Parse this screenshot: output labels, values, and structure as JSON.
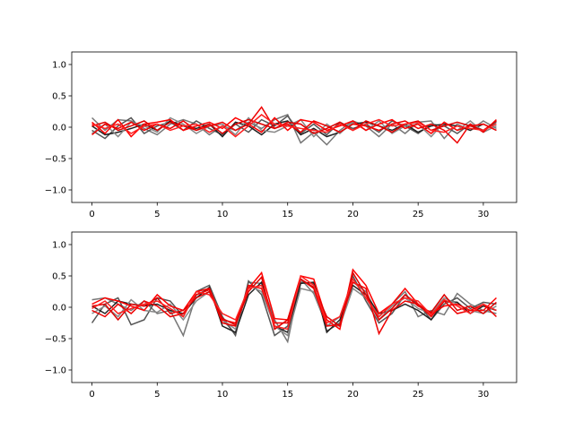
{
  "chart_data": [
    {
      "type": "line",
      "xlim": [
        -1.55,
        32.55
      ],
      "ylim": [
        -1.2,
        1.2
      ],
      "xticks": [
        0,
        5,
        10,
        15,
        20,
        25,
        30
      ],
      "yticks": [
        -1.0,
        -0.5,
        0.0,
        0.5,
        1.0
      ],
      "xtick_labels": [
        "0",
        "5",
        "10",
        "15",
        "20",
        "25",
        "30"
      ],
      "ytick_labels": [
        "−1.0",
        "−0.5",
        "0.0",
        "0.5",
        "1.0"
      ],
      "grid": false,
      "x": [
        0,
        1,
        2,
        3,
        4,
        5,
        6,
        7,
        8,
        9,
        10,
        11,
        12,
        13,
        14,
        15,
        16,
        17,
        18,
        19,
        20,
        21,
        22,
        23,
        24,
        25,
        26,
        27,
        28,
        29,
        30,
        31
      ],
      "series": [
        {
          "color": "#777777",
          "values": [
            0.15,
            -0.05,
            0.12,
            0.1,
            -0.02,
            -0.12,
            0.05,
            0.12,
            0.05,
            -0.12,
            0.02,
            -0.05,
            0.08,
            -0.02,
            0.12,
            0.2,
            -0.25,
            -0.08,
            -0.28,
            -0.05,
            0.1,
            0.02,
            -0.15,
            0.05,
            -0.1,
            0.08,
            0.1,
            -0.18,
            0.05,
            -0.05,
            0.1,
            -0.02
          ]
        },
        {
          "color": "#555555",
          "values": [
            -0.05,
            -0.18,
            0.02,
            0.15,
            -0.1,
            0.02,
            0.08,
            -0.05,
            0.1,
            -0.02,
            -0.12,
            0.05,
            -0.08,
            0.12,
            0.02,
            0.18,
            -0.1,
            0.05,
            -0.12,
            0.08,
            -0.02,
            0.05,
            -0.08,
            0.1,
            0.02,
            -0.1,
            0.05,
            0.02,
            -0.1,
            0.05,
            -0.05,
            0.08
          ]
        },
        {
          "color": "#222222",
          "values": [
            0.02,
            -0.12,
            -0.08,
            -0.02,
            0.05,
            -0.05,
            0.1,
            0.02,
            -0.02,
            0.05,
            -0.15,
            0.08,
            0.02,
            -0.12,
            0.05,
            0.1,
            -0.12,
            -0.02,
            -0.15,
            -0.08,
            0.05,
            0.08,
            0.02,
            -0.05,
            0.05,
            -0.08,
            0.02,
            0.05,
            0.02,
            -0.05,
            0.05,
            -0.05
          ]
        },
        {
          "color": "#888888",
          "values": [
            -0.1,
            0.05,
            -0.15,
            0.08,
            0.02,
            -0.08,
            0.15,
            0.05,
            -0.1,
            0.02,
            0.05,
            -0.12,
            0.15,
            -0.05,
            -0.08,
            0.02,
            0.12,
            -0.15,
            0.05,
            -0.1,
            0.08,
            -0.05,
            0.1,
            -0.1,
            0.02,
            0.05,
            -0.15,
            0.08,
            -0.05,
            0.1,
            -0.08,
            0.02
          ]
        },
        {
          "color": "#ff0000",
          "values": [
            0.08,
            -0.1,
            0.12,
            -0.15,
            0.05,
            0.08,
            0.12,
            -0.05,
            0.02,
            0.08,
            -0.02,
            0.15,
            0.05,
            -0.08,
            0.15,
            -0.05,
            0.12,
            0.08,
            -0.05,
            0.02,
            0.1,
            -0.05,
            0.05,
            0.12,
            -0.02,
            0.05,
            -0.1,
            0.08,
            -0.05,
            0.02,
            0.05,
            -0.05
          ]
        },
        {
          "color": "#ee0000",
          "values": [
            -0.12,
            0.05,
            -0.02,
            0.08,
            -0.05,
            0.05,
            -0.02,
            0.1,
            -0.05,
            0.02,
            0.08,
            -0.05,
            0.05,
            0.32,
            -0.02,
            0.05,
            -0.08,
            0.1,
            0.02,
            -0.08,
            0.05,
            0.02,
            -0.05,
            0.05,
            0.1,
            -0.02,
            0.05,
            -0.05,
            -0.25,
            0.05,
            -0.08,
            0.12
          ]
        },
        {
          "color": "#dd0000",
          "values": [
            0.02,
            0.08,
            -0.05,
            0.02,
            0.1,
            -0.05,
            0.08,
            0.02,
            -0.05,
            0.05,
            -0.1,
            0.05,
            0.12,
            0.05,
            -0.02,
            0.08,
            0.05,
            -0.1,
            -0.02,
            0.08,
            -0.05,
            0.1,
            0.02,
            -0.08,
            0.05,
            0.1,
            -0.05,
            0.02,
            0.08,
            0.02,
            -0.05,
            0.1
          ]
        },
        {
          "color": "#ff2020",
          "values": [
            0.05,
            -0.02,
            0.05,
            -0.1,
            0.02,
            0.05,
            -0.05,
            0.02,
            0.05,
            -0.08,
            0.02,
            -0.15,
            0.02,
            0.2,
            0.05,
            0.02,
            -0.02,
            -0.05,
            -0.08,
            0.05,
            -0.05,
            0.05,
            0.12,
            0.02,
            0.05,
            0.08,
            -0.05,
            -0.08,
            0.02,
            -0.02,
            -0.05,
            0.05
          ]
        }
      ]
    },
    {
      "type": "line",
      "xlim": [
        -1.55,
        32.55
      ],
      "ylim": [
        -1.2,
        1.2
      ],
      "xticks": [
        0,
        5,
        10,
        15,
        20,
        25,
        30
      ],
      "yticks": [
        -1.0,
        -0.5,
        0.0,
        0.5,
        1.0
      ],
      "xtick_labels": [
        "0",
        "5",
        "10",
        "15",
        "20",
        "25",
        "30"
      ],
      "ytick_labels": [
        "−1.0",
        "−0.5",
        "0.0",
        "0.5",
        "1.0"
      ],
      "grid": false,
      "x": [
        0,
        1,
        2,
        3,
        4,
        5,
        6,
        7,
        8,
        9,
        10,
        11,
        12,
        13,
        14,
        15,
        16,
        17,
        18,
        19,
        20,
        21,
        22,
        23,
        24,
        25,
        26,
        27,
        28,
        29,
        30,
        31
      ],
      "series": [
        {
          "color": "#777777",
          "values": [
            0.12,
            0.15,
            0.05,
            -0.05,
            0.1,
            -0.1,
            -0.05,
            -0.45,
            0.2,
            0.3,
            -0.2,
            -0.42,
            0.4,
            0.38,
            -0.2,
            -0.55,
            0.45,
            0.22,
            -0.3,
            -0.15,
            0.4,
            0.25,
            -0.15,
            0.05,
            0.25,
            -0.15,
            -0.05,
            -0.12,
            0.22,
            0.05,
            -0.05,
            -0.1
          ]
        },
        {
          "color": "#555555",
          "values": [
            -0.25,
            0.05,
            0.15,
            -0.28,
            -0.2,
            0.15,
            0.1,
            -0.15,
            0.25,
            0.35,
            -0.15,
            -0.45,
            0.42,
            0.2,
            -0.45,
            -0.3,
            0.4,
            0.38,
            -0.38,
            -0.25,
            0.5,
            0.1,
            -0.25,
            -0.1,
            0.2,
            0.05,
            -0.2,
            0.05,
            0.15,
            -0.02,
            0.08,
            0.05
          ]
        },
        {
          "color": "#222222",
          "values": [
            0.02,
            -0.1,
            0.1,
            0.05,
            0.02,
            0.05,
            -0.05,
            -0.1,
            0.15,
            0.32,
            -0.3,
            -0.4,
            0.2,
            0.4,
            -0.3,
            -0.4,
            0.38,
            0.4,
            -0.4,
            -0.2,
            0.35,
            0.2,
            -0.1,
            -0.05,
            0.05,
            -0.05,
            -0.2,
            0.1,
            0.08,
            -0.1,
            0.02,
            -0.05
          ]
        },
        {
          "color": "#888888",
          "values": [
            -0.1,
            0.02,
            -0.15,
            0.12,
            -0.05,
            -0.08,
            0.05,
            -0.2,
            0.1,
            0.25,
            -0.2,
            -0.35,
            0.35,
            0.25,
            -0.3,
            -0.45,
            0.3,
            0.25,
            -0.28,
            -0.3,
            0.3,
            0.15,
            -0.2,
            0.02,
            0.15,
            -0.02,
            -0.1,
            0.15,
            0.05,
            -0.05,
            -0.1,
            0.02
          ]
        },
        {
          "color": "#ff0000",
          "values": [
            0.05,
            0.15,
            0.1,
            0.02,
            -0.05,
            0.2,
            0.02,
            -0.05,
            0.25,
            0.3,
            -0.2,
            -0.25,
            0.3,
            0.55,
            -0.18,
            -0.2,
            0.5,
            0.45,
            -0.2,
            -0.35,
            0.6,
            0.35,
            -0.1,
            0.05,
            0.3,
            0.05,
            -0.1,
            0.02,
            0.05,
            -0.05,
            -0.05,
            0.15
          ]
        },
        {
          "color": "#ee0000",
          "values": [
            -0.05,
            -0.15,
            0.05,
            -0.1,
            0.1,
            0.02,
            -0.15,
            -0.1,
            0.2,
            0.28,
            -0.25,
            -0.3,
            0.35,
            0.3,
            -0.25,
            -0.25,
            0.45,
            0.3,
            -0.3,
            -0.28,
            0.4,
            0.3,
            -0.42,
            -0.05,
            0.1,
            0.05,
            -0.15,
            0.1,
            -0.1,
            -0.05,
            0.05,
            -0.15
          ]
        },
        {
          "color": "#dd0000",
          "values": [
            0.02,
            0.05,
            -0.2,
            0.05,
            0.02,
            0.15,
            -0.1,
            -0.05,
            0.15,
            0.25,
            -0.18,
            -0.28,
            0.25,
            0.48,
            -0.35,
            -0.2,
            0.45,
            0.32,
            -0.15,
            -0.3,
            0.55,
            0.2,
            -0.2,
            -0.02,
            0.2,
            0.02,
            -0.08,
            0.2,
            -0.05,
            0.02,
            -0.1,
            0.08
          ]
        },
        {
          "color": "#ff2020",
          "values": [
            -0.02,
            0.1,
            -0.1,
            -0.02,
            0.05,
            0.1,
            -0.02,
            -0.15,
            0.25,
            0.2,
            -0.1,
            -0.2,
            0.3,
            0.35,
            -0.3,
            -0.35,
            0.5,
            0.35,
            -0.25,
            -0.15,
            0.45,
            0.15,
            -0.15,
            0.05,
            0.15,
            0.1,
            -0.12,
            0.12,
            0.02,
            -0.1,
            0.05,
            -0.05
          ]
        }
      ]
    }
  ]
}
